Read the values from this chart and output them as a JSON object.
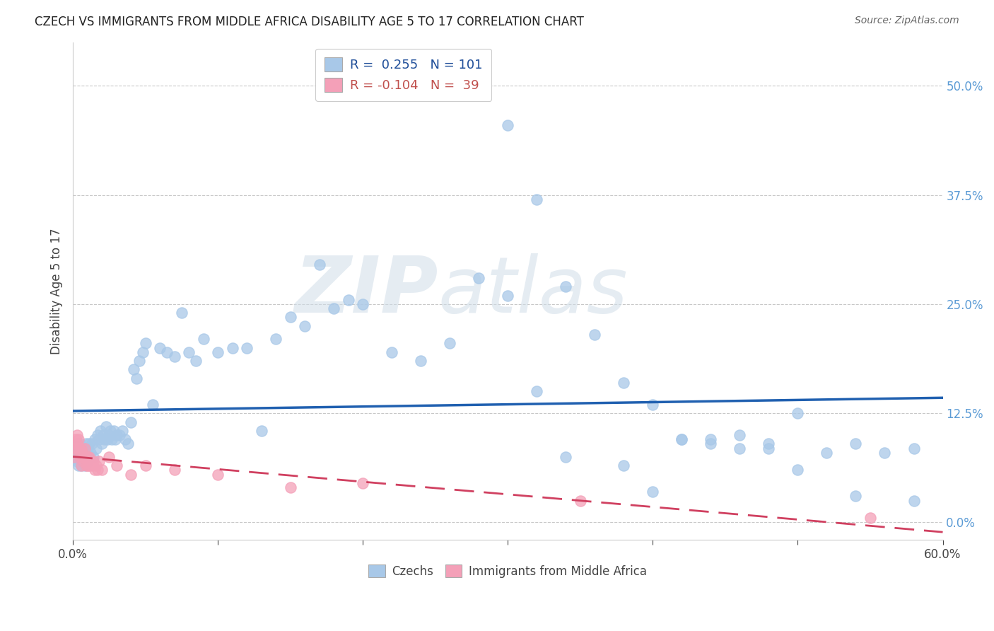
{
  "title": "CZECH VS IMMIGRANTS FROM MIDDLE AFRICA DISABILITY AGE 5 TO 17 CORRELATION CHART",
  "source": "Source: ZipAtlas.com",
  "ylabel": "Disability Age 5 to 17",
  "xlim": [
    0.0,
    0.6
  ],
  "ylim": [
    -0.02,
    0.55
  ],
  "yticks": [
    0.0,
    0.125,
    0.25,
    0.375,
    0.5
  ],
  "ytick_labels": [
    "0.0%",
    "12.5%",
    "25.0%",
    "37.5%",
    "50.0%"
  ],
  "xticks": [
    0.0,
    0.1,
    0.2,
    0.3,
    0.4,
    0.5,
    0.6
  ],
  "xtick_labels": [
    "0.0%",
    "",
    "",
    "",
    "",
    "",
    "60.0%"
  ],
  "czech_R": 0.255,
  "czech_N": 101,
  "immigrant_R": -0.104,
  "immigrant_N": 39,
  "czech_color": "#a8c8e8",
  "immigrant_color": "#f4a0b8",
  "czech_line_color": "#2060b0",
  "immigrant_line_color": "#d04060",
  "background_color": "#ffffff",
  "watermark_text": "ZIP",
  "watermark_text2": "atlas",
  "czech_x": [
    0.001,
    0.002,
    0.003,
    0.003,
    0.004,
    0.004,
    0.005,
    0.005,
    0.005,
    0.006,
    0.006,
    0.006,
    0.007,
    0.007,
    0.008,
    0.008,
    0.009,
    0.009,
    0.01,
    0.01,
    0.011,
    0.011,
    0.012,
    0.013,
    0.014,
    0.015,
    0.016,
    0.017,
    0.018,
    0.019,
    0.02,
    0.021,
    0.022,
    0.023,
    0.024,
    0.025,
    0.026,
    0.027,
    0.028,
    0.029,
    0.03,
    0.032,
    0.034,
    0.036,
    0.038,
    0.04,
    0.042,
    0.044,
    0.046,
    0.048,
    0.05,
    0.055,
    0.06,
    0.065,
    0.07,
    0.075,
    0.08,
    0.085,
    0.09,
    0.1,
    0.11,
    0.12,
    0.13,
    0.14,
    0.15,
    0.16,
    0.17,
    0.18,
    0.19,
    0.2,
    0.22,
    0.24,
    0.26,
    0.28,
    0.3,
    0.32,
    0.34,
    0.36,
    0.38,
    0.4,
    0.42,
    0.44,
    0.46,
    0.48,
    0.5,
    0.52,
    0.54,
    0.56,
    0.58,
    0.3,
    0.32,
    0.34,
    0.38,
    0.42,
    0.46,
    0.5,
    0.54,
    0.58,
    0.4,
    0.44,
    0.48
  ],
  "czech_y": [
    0.075,
    0.08,
    0.07,
    0.09,
    0.065,
    0.085,
    0.07,
    0.08,
    0.09,
    0.065,
    0.075,
    0.085,
    0.07,
    0.08,
    0.065,
    0.085,
    0.075,
    0.09,
    0.07,
    0.085,
    0.075,
    0.09,
    0.08,
    0.09,
    0.075,
    0.095,
    0.085,
    0.1,
    0.095,
    0.105,
    0.09,
    0.1,
    0.095,
    0.11,
    0.095,
    0.1,
    0.105,
    0.095,
    0.105,
    0.095,
    0.1,
    0.1,
    0.105,
    0.095,
    0.09,
    0.115,
    0.175,
    0.165,
    0.185,
    0.195,
    0.205,
    0.135,
    0.2,
    0.195,
    0.19,
    0.24,
    0.195,
    0.185,
    0.21,
    0.195,
    0.2,
    0.2,
    0.105,
    0.21,
    0.235,
    0.225,
    0.295,
    0.245,
    0.255,
    0.25,
    0.195,
    0.185,
    0.205,
    0.28,
    0.26,
    0.37,
    0.27,
    0.215,
    0.16,
    0.135,
    0.095,
    0.09,
    0.1,
    0.09,
    0.125,
    0.08,
    0.09,
    0.08,
    0.025,
    0.455,
    0.15,
    0.075,
    0.065,
    0.095,
    0.085,
    0.06,
    0.03,
    0.085,
    0.035,
    0.095,
    0.085
  ],
  "immigrant_x": [
    0.001,
    0.002,
    0.002,
    0.003,
    0.003,
    0.004,
    0.004,
    0.005,
    0.005,
    0.006,
    0.006,
    0.007,
    0.007,
    0.008,
    0.008,
    0.009,
    0.009,
    0.01,
    0.01,
    0.011,
    0.011,
    0.012,
    0.013,
    0.014,
    0.015,
    0.016,
    0.017,
    0.018,
    0.02,
    0.025,
    0.03,
    0.04,
    0.05,
    0.07,
    0.1,
    0.15,
    0.2,
    0.35,
    0.55
  ],
  "immigrant_y": [
    0.075,
    0.095,
    0.085,
    0.09,
    0.1,
    0.085,
    0.095,
    0.075,
    0.085,
    0.065,
    0.085,
    0.07,
    0.08,
    0.075,
    0.085,
    0.065,
    0.075,
    0.065,
    0.075,
    0.065,
    0.075,
    0.07,
    0.065,
    0.07,
    0.06,
    0.065,
    0.06,
    0.07,
    0.06,
    0.075,
    0.065,
    0.055,
    0.065,
    0.06,
    0.055,
    0.04,
    0.045,
    0.025,
    0.005
  ]
}
